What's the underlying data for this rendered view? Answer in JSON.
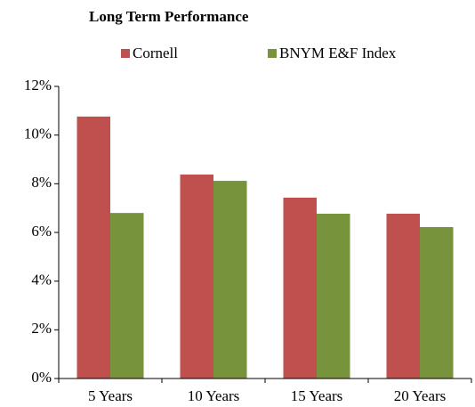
{
  "chart_data": {
    "type": "bar",
    "title": "Long Term Performance",
    "categories": [
      "5 Years",
      "10 Years",
      "15 Years",
      "20 Years"
    ],
    "series": [
      {
        "name": "Cornell",
        "color": "#c0504d",
        "values": [
          10.76,
          8.38,
          7.43,
          6.77
        ]
      },
      {
        "name": "BNYM E&F Index",
        "color": "#77933c",
        "values": [
          6.8,
          8.12,
          6.77,
          6.22
        ]
      }
    ],
    "ylim": [
      0,
      12
    ],
    "yticks": [
      {
        "value": 0,
        "label": "0%"
      },
      {
        "value": 2,
        "label": "2%"
      },
      {
        "value": 4,
        "label": "4%"
      },
      {
        "value": 6,
        "label": "6%"
      },
      {
        "value": 8,
        "label": "8%"
      },
      {
        "value": 10,
        "label": "10%"
      },
      {
        "value": 12,
        "label": "12%"
      }
    ],
    "legend": "top",
    "grid": false
  }
}
